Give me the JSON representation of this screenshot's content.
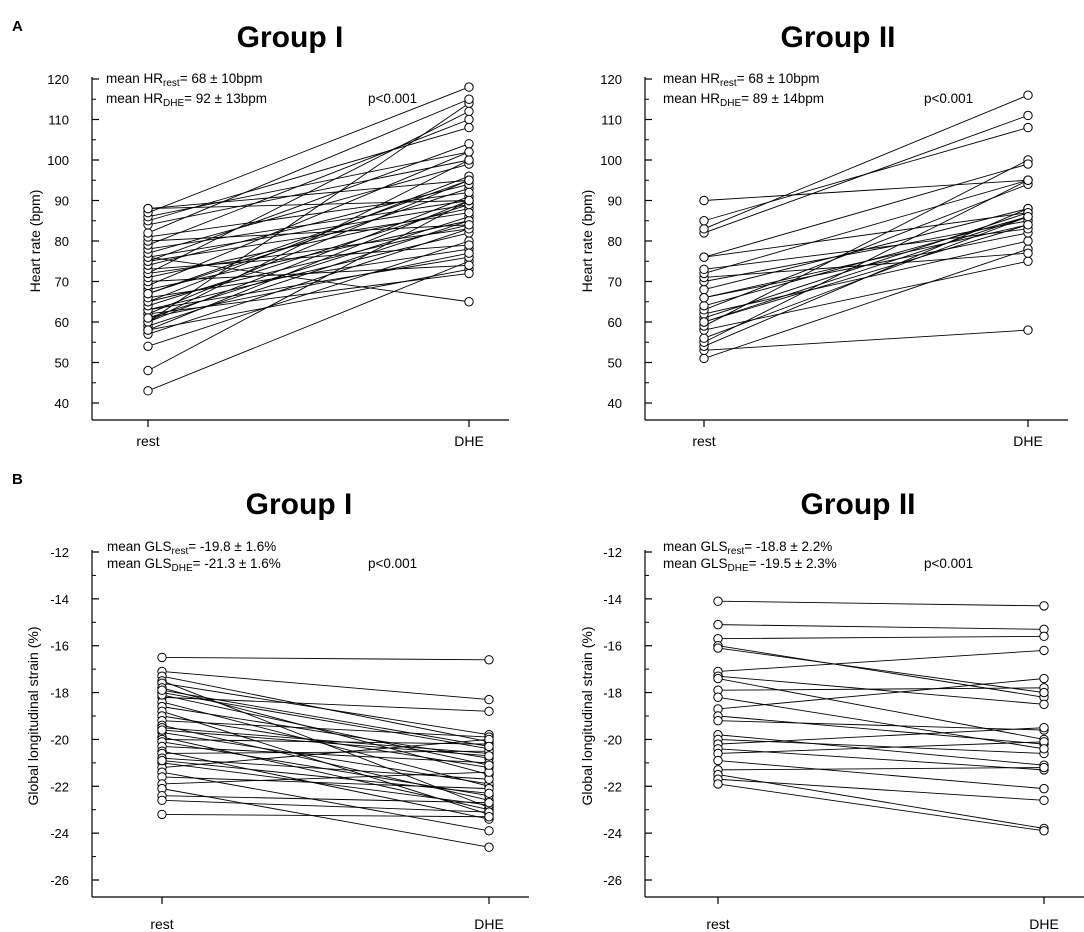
{
  "chart_data": [
    {
      "panel_label": "A",
      "type": "line",
      "title": "Group I",
      "ylabel": "Heart rate (bpm)",
      "categories": [
        "rest",
        "DHE"
      ],
      "ylim": [
        40,
        120
      ],
      "yticks": [
        40,
        50,
        60,
        70,
        80,
        90,
        100,
        110,
        120
      ],
      "stats": {
        "line1_prefix": "mean HR",
        "line1_sub": "rest",
        "line1_value": "= 68 ± 10bpm",
        "line2_prefix": "mean HR",
        "line2_sub": "DHE",
        "line2_value": "= 92 ± 13bpm",
        "p_value": "p<0.001"
      },
      "pairs": [
        [
          43,
          75
        ],
        [
          48,
          90
        ],
        [
          54,
          80
        ],
        [
          57,
          83
        ],
        [
          58,
          73
        ],
        [
          59,
          85
        ],
        [
          60,
          91
        ],
        [
          60,
          114
        ],
        [
          60,
          100
        ],
        [
          61,
          86
        ],
        [
          62,
          72
        ],
        [
          62,
          95
        ],
        [
          63,
          76
        ],
        [
          63,
          82
        ],
        [
          64,
          89
        ],
        [
          65,
          84
        ],
        [
          65,
          96
        ],
        [
          66,
          78
        ],
        [
          67,
          93
        ],
        [
          68,
          85
        ],
        [
          69,
          102
        ],
        [
          70,
          74
        ],
        [
          71,
          88
        ],
        [
          72,
          83
        ],
        [
          72,
          112
        ],
        [
          73,
          79
        ],
        [
          74,
          94
        ],
        [
          75,
          87
        ],
        [
          75,
          104
        ],
        [
          76,
          89
        ],
        [
          76,
          65
        ],
        [
          77,
          99
        ],
        [
          78,
          90
        ],
        [
          79,
          110
        ],
        [
          80,
          84
        ],
        [
          81,
          92
        ],
        [
          82,
          115
        ],
        [
          84,
          100
        ],
        [
          85,
          108
        ],
        [
          86,
          102
        ],
        [
          87,
          118
        ],
        [
          88,
          95
        ],
        [
          88,
          90
        ],
        [
          58,
          90
        ],
        [
          61,
          77
        ],
        [
          67,
          95
        ]
      ]
    },
    {
      "panel_label": "",
      "type": "line",
      "title": "Group II",
      "ylabel": "Heart rate (bpm)",
      "categories": [
        "rest",
        "DHE"
      ],
      "ylim": [
        40,
        120
      ],
      "yticks": [
        40,
        50,
        60,
        70,
        80,
        90,
        100,
        110,
        120
      ],
      "stats": {
        "line1_prefix": "mean HR",
        "line1_sub": "rest",
        "line1_value": "= 68 ± 10bpm",
        "line2_prefix": "mean HR",
        "line2_sub": "DHE",
        "line2_value": "= 89 ± 14bpm",
        "p_value": "p<0.001"
      },
      "pairs": [
        [
          51,
          78
        ],
        [
          53,
          58
        ],
        [
          54,
          88
        ],
        [
          55,
          95
        ],
        [
          56,
          86
        ],
        [
          58,
          75
        ],
        [
          59,
          100
        ],
        [
          60,
          84
        ],
        [
          61,
          87
        ],
        [
          62,
          80
        ],
        [
          63,
          94
        ],
        [
          64,
          86
        ],
        [
          66,
          82
        ],
        [
          68,
          88
        ],
        [
          70,
          85
        ],
        [
          71,
          77
        ],
        [
          72,
          95
        ],
        [
          73,
          83
        ],
        [
          76,
          87
        ],
        [
          76,
          99
        ],
        [
          82,
          111
        ],
        [
          83,
          116
        ],
        [
          85,
          108
        ],
        [
          90,
          95
        ],
        [
          60,
          86
        ],
        [
          66,
          84
        ]
      ]
    },
    {
      "panel_label": "B",
      "type": "line",
      "title": "Group I",
      "ylabel": "Global longitudinal strain (%)",
      "categories": [
        "rest",
        "DHE"
      ],
      "ylim": [
        -26,
        -12
      ],
      "yticks": [
        -26,
        -24,
        -22,
        -20,
        -18,
        -16,
        -14,
        -12
      ],
      "stats": {
        "line1_prefix": "mean GLS",
        "line1_sub": "rest",
        "line1_value": "= -19.8 ± 1.6%",
        "line2_prefix": "mean GLS",
        "line2_sub": "DHE",
        "line2_value": "= -21.3 ± 1.6%",
        "p_value": "p<0.001"
      },
      "pairs": [
        [
          -16.5,
          -16.6
        ],
        [
          -17.1,
          -18.3
        ],
        [
          -17.3,
          -20.1
        ],
        [
          -17.5,
          -22.9
        ],
        [
          -17.6,
          -19.8
        ],
        [
          -17.8,
          -21.5
        ],
        [
          -18.0,
          -20.4
        ],
        [
          -18.2,
          -18.8
        ],
        [
          -18.4,
          -22.0
        ],
        [
          -18.6,
          -20.8
        ],
        [
          -18.8,
          -23.2
        ],
        [
          -19.0,
          -21.2
        ],
        [
          -19.2,
          -19.9
        ],
        [
          -19.4,
          -22.6
        ],
        [
          -19.5,
          -20.6
        ],
        [
          -19.7,
          -21.9
        ],
        [
          -19.9,
          -23.0
        ],
        [
          -20.0,
          -20.2
        ],
        [
          -20.1,
          -22.4
        ],
        [
          -20.3,
          -21.0
        ],
        [
          -20.5,
          -23.4
        ],
        [
          -20.6,
          -20.5
        ],
        [
          -20.8,
          -21.7
        ],
        [
          -21.0,
          -22.8
        ],
        [
          -21.2,
          -20.0
        ],
        [
          -21.4,
          -23.9
        ],
        [
          -21.6,
          -22.1
        ],
        [
          -21.9,
          -21.4
        ],
        [
          -22.1,
          -24.6
        ],
        [
          -22.4,
          -22.7
        ],
        [
          -22.6,
          -23.1
        ],
        [
          -23.2,
          -23.3
        ],
        [
          -18.1,
          -21.1
        ],
        [
          -19.6,
          -20.7
        ],
        [
          -20.9,
          -22.3
        ],
        [
          -17.9,
          -20.3
        ]
      ]
    },
    {
      "panel_label": "",
      "type": "line",
      "title": "Group II",
      "ylabel": "Global longitudinal strain (%)",
      "categories": [
        "rest",
        "DHE"
      ],
      "ylim": [
        -26,
        -12
      ],
      "yticks": [
        -26,
        -24,
        -22,
        -20,
        -18,
        -16,
        -14,
        -12
      ],
      "stats": {
        "line1_prefix": "mean GLS",
        "line1_sub": "rest",
        "line1_value": "= -18.8 ± 2.2%",
        "line2_prefix": "mean GLS",
        "line2_sub": "DHE",
        "line2_value": "= -19.5 ± 2.3%",
        "p_value": "p<0.001"
      },
      "pairs": [
        [
          -14.1,
          -14.3
        ],
        [
          -15.1,
          -15.3
        ],
        [
          -15.7,
          -15.6
        ],
        [
          -16.0,
          -18.2
        ],
        [
          -17.1,
          -16.2
        ],
        [
          -17.3,
          -18.5
        ],
        [
          -17.4,
          -20.0
        ],
        [
          -17.9,
          -17.8
        ],
        [
          -18.7,
          -17.4
        ],
        [
          -19.0,
          -20.2
        ],
        [
          -19.2,
          -19.6
        ],
        [
          -19.8,
          -21.1
        ],
        [
          -20.0,
          -20.6
        ],
        [
          -20.2,
          -19.5
        ],
        [
          -20.4,
          -21.3
        ],
        [
          -20.6,
          -20.1
        ],
        [
          -20.9,
          -22.1
        ],
        [
          -21.3,
          -21.2
        ],
        [
          -21.5,
          -23.8
        ],
        [
          -21.7,
          -22.6
        ],
        [
          -21.9,
          -23.9
        ],
        [
          -18.2,
          -20.4
        ],
        [
          -16.1,
          -18.0
        ]
      ]
    }
  ]
}
